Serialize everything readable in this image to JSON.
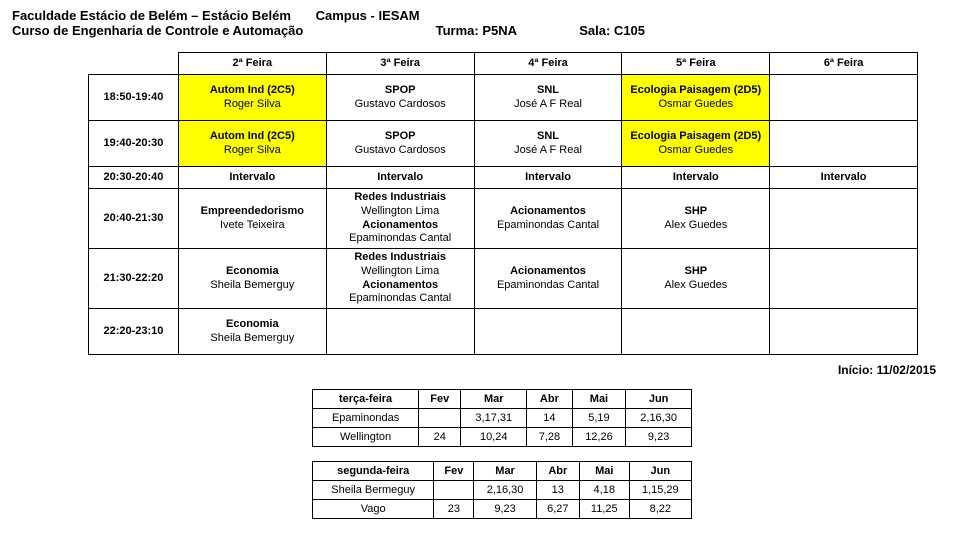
{
  "header": {
    "line1a": "Faculdade Estácio de Belém – Estácio Belém",
    "line1b": "Campus - IESAM",
    "line2a": "Curso de Engenharia de Controle e Automação",
    "line2b": "Turma: P5NA",
    "line2c": "Sala: C105"
  },
  "schedule": {
    "days": [
      "2ª Feira",
      "3ª Feira",
      "4ª Feira",
      "5ª Feira",
      "6ª Feira"
    ],
    "rows": [
      {
        "time": "18:50-19:40",
        "cells": [
          {
            "l1": "Autom Ind (2C5)",
            "l2": "Roger Silva",
            "bg": "yellow"
          },
          {
            "l1": "SPOP",
            "l2": "Gustavo Cardosos",
            "bg": "plain"
          },
          {
            "l1": "SNL",
            "l2": "José A F Real",
            "bg": "plain"
          },
          {
            "l1": "Ecologia Paisagem (2D5)",
            "l2": "Osmar Guedes",
            "bg": "yellow"
          },
          {
            "l1": "",
            "l2": "",
            "bg": "plain"
          }
        ]
      },
      {
        "time": "19:40-20:30",
        "cells": [
          {
            "l1": "Autom Ind (2C5)",
            "l2": "Roger Silva",
            "bg": "yellow"
          },
          {
            "l1": "SPOP",
            "l2": "Gustavo Cardosos",
            "bg": "plain"
          },
          {
            "l1": "SNL",
            "l2": "José A F Real",
            "bg": "plain"
          },
          {
            "l1": "Ecologia Paisagem (2D5)",
            "l2": "Osmar Guedes",
            "bg": "yellow"
          },
          {
            "l1": "",
            "l2": "",
            "bg": "plain"
          }
        ]
      },
      {
        "time": "20:30-20:40",
        "interval": true,
        "label": "Intervalo"
      },
      {
        "time": "20:40-21:30",
        "cells": [
          {
            "l1": "Empreendedorismo",
            "l2": "Ivete Teixeira",
            "bg": "plain"
          },
          {
            "multi": [
              "Redes Industriais",
              "Wellington Lima",
              "Acionamentos",
              "Epaminondas Cantal"
            ],
            "bg": "plain"
          },
          {
            "l1": "Acionamentos",
            "l2": "Epaminondas Cantal",
            "bg": "plain"
          },
          {
            "l1": "SHP",
            "l2": "Alex Guedes",
            "bg": "plain"
          },
          {
            "l1": "",
            "l2": "",
            "bg": "plain"
          }
        ]
      },
      {
        "time": "21:30-22:20",
        "cells": [
          {
            "l1": "Economia",
            "l2": "Sheila Bemerguy",
            "bg": "plain"
          },
          {
            "multi": [
              "Redes Industriais",
              "Wellington Lima",
              "Acionamentos",
              "Epaminondas Cantal"
            ],
            "bg": "plain"
          },
          {
            "l1": "Acionamentos",
            "l2": "Epaminondas Cantal",
            "bg": "plain"
          },
          {
            "l1": "SHP",
            "l2": "Alex Guedes",
            "bg": "plain"
          },
          {
            "l1": "",
            "l2": "",
            "bg": "plain"
          }
        ]
      },
      {
        "time": "22:20-23:10",
        "cells": [
          {
            "l1": "Economia",
            "l2": "Sheila Bemerguy",
            "bg": "plain"
          },
          {
            "l1": "",
            "l2": "",
            "bg": "plain"
          },
          {
            "l1": "",
            "l2": "",
            "bg": "plain"
          },
          {
            "l1": "",
            "l2": "",
            "bg": "plain"
          },
          {
            "l1": "",
            "l2": "",
            "bg": "plain"
          }
        ]
      }
    ]
  },
  "start_label": "Início: 11/02/2015",
  "mini1": {
    "cols": [
      "terça-feira",
      "Fev",
      "Mar",
      "Abr",
      "Mai",
      "Jun"
    ],
    "rows": [
      [
        "Epaminondas",
        "",
        "3,17,31",
        "14",
        "5,19",
        "2,16,30"
      ],
      [
        "Wellington",
        "24",
        "10,24",
        "7,28",
        "12,26",
        "9,23"
      ]
    ]
  },
  "mini2": {
    "cols": [
      "segunda-feira",
      "Fev",
      "Mar",
      "Abr",
      "Mai",
      "Jun"
    ],
    "rows": [
      [
        "Sheila Bermeguy",
        "",
        "2,16,30",
        "13",
        "4,18",
        "1,15,29"
      ],
      [
        "Vago",
        "23",
        "9,23",
        "6,27",
        "11,25",
        "8,22"
      ]
    ]
  },
  "colors": {
    "highlight": "#ffff00",
    "border": "#000000",
    "background": "#ffffff",
    "text": "#000000"
  }
}
